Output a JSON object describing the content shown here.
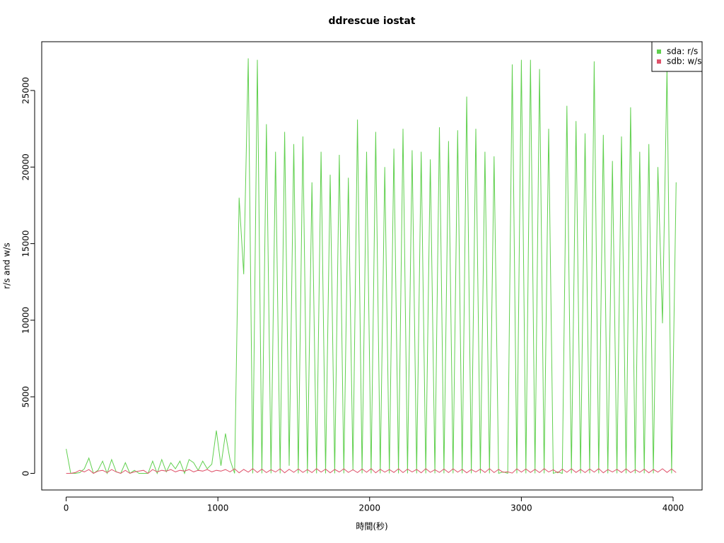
{
  "chart_data": {
    "type": "line",
    "title": "ddrescue iostat",
    "x_label": "時間(秒)",
    "y_label": "r/s and w/s",
    "x": [
      0,
      30,
      60,
      90,
      120,
      150,
      180,
      210,
      240,
      270,
      300,
      330,
      360,
      390,
      420,
      450,
      480,
      510,
      540,
      570,
      600,
      630,
      660,
      690,
      720,
      750,
      780,
      810,
      840,
      870,
      900,
      930,
      960,
      990,
      1020,
      1050,
      1080,
      1110,
      1140,
      1170,
      1200,
      1230,
      1260,
      1290,
      1320,
      1350,
      1380,
      1410,
      1440,
      1470,
      1500,
      1530,
      1560,
      1590,
      1620,
      1650,
      1680,
      1710,
      1740,
      1770,
      1800,
      1830,
      1860,
      1890,
      1920,
      1950,
      1980,
      2010,
      2040,
      2070,
      2100,
      2130,
      2160,
      2190,
      2220,
      2250,
      2280,
      2310,
      2340,
      2370,
      2400,
      2430,
      2460,
      2490,
      2520,
      2550,
      2580,
      2610,
      2640,
      2670,
      2700,
      2730,
      2760,
      2790,
      2820,
      2850,
      2880,
      2910,
      2940,
      2970,
      3000,
      3030,
      3060,
      3090,
      3120,
      3150,
      3180,
      3210,
      3240,
      3270,
      3300,
      3330,
      3360,
      3390,
      3420,
      3450,
      3480,
      3510,
      3540,
      3570,
      3600,
      3630,
      3660,
      3690,
      3720,
      3750,
      3780,
      3810,
      3840,
      3870,
      3900,
      3930,
      3960,
      3990,
      4020
    ],
    "series": [
      {
        "name": "sda: r/s",
        "color": "#61d04f",
        "values": [
          1600,
          0,
          0,
          50,
          300,
          1000,
          0,
          200,
          800,
          0,
          900,
          100,
          0,
          700,
          0,
          200,
          0,
          0,
          0,
          800,
          0,
          900,
          100,
          700,
          300,
          800,
          0,
          900,
          700,
          200,
          800,
          300,
          600,
          2800,
          500,
          2600,
          900,
          0,
          18000,
          13000,
          27100,
          0,
          27000,
          0,
          22800,
          0,
          21000,
          0,
          22300,
          500,
          21500,
          0,
          22000,
          0,
          19000,
          0,
          21000,
          0,
          19500,
          0,
          20800,
          0,
          19300,
          200,
          23100,
          0,
          21000,
          0,
          22300,
          0,
          20000,
          0,
          21200,
          0,
          22500,
          0,
          21100,
          0,
          21000,
          0,
          20500,
          0,
          22600,
          0,
          21700,
          0,
          22400,
          0,
          24600,
          0,
          22500,
          0,
          21000,
          0,
          20700,
          0,
          100,
          0,
          26700,
          0,
          27000,
          0,
          27000,
          0,
          26400,
          0,
          22500,
          0,
          100,
          0,
          24000,
          0,
          23000,
          0,
          22200,
          0,
          26900,
          0,
          22100,
          0,
          20400,
          0,
          22000,
          0,
          23900,
          0,
          21000,
          0,
          21500,
          0,
          20000,
          9800,
          26500,
          0,
          19000
        ]
      },
      {
        "name": "sdb: w/s",
        "color": "#df536b",
        "values": [
          0,
          0,
          50,
          200,
          100,
          250,
          0,
          150,
          200,
          50,
          250,
          100,
          0,
          200,
          0,
          100,
          150,
          200,
          0,
          250,
          100,
          200,
          150,
          250,
          100,
          200,
          150,
          250,
          100,
          200,
          150,
          250,
          100,
          200,
          150,
          250,
          100,
          300,
          40,
          260,
          80,
          310,
          60,
          280,
          50,
          240,
          90,
          300,
          40,
          270,
          70,
          290,
          60,
          250,
          50,
          310,
          80,
          280,
          40,
          260,
          90,
          300,
          60,
          240,
          50,
          290,
          70,
          310,
          40,
          270,
          80,
          250,
          60,
          300,
          50,
          280,
          90,
          260,
          40,
          310,
          70,
          240,
          60,
          290,
          50,
          300,
          80,
          270,
          40,
          250,
          90,
          280,
          60,
          310,
          50,
          260,
          70,
          100,
          20,
          300,
          80,
          290,
          60,
          270,
          50,
          310,
          90,
          240,
          40,
          280,
          70,
          300,
          60,
          260,
          50,
          290,
          80,
          310,
          40,
          250,
          90,
          270,
          60,
          300,
          50,
          240,
          70,
          280,
          40,
          260,
          80,
          300,
          60,
          290,
          50
        ]
      }
    ],
    "xlim": [
      -161,
      4191
    ],
    "ylim": [
      -1084,
      28184
    ],
    "xticks": [
      0,
      1000,
      2000,
      3000,
      4000
    ],
    "yticks": [
      0,
      5000,
      10000,
      15000,
      20000,
      25000
    ],
    "legend": "top-right"
  }
}
